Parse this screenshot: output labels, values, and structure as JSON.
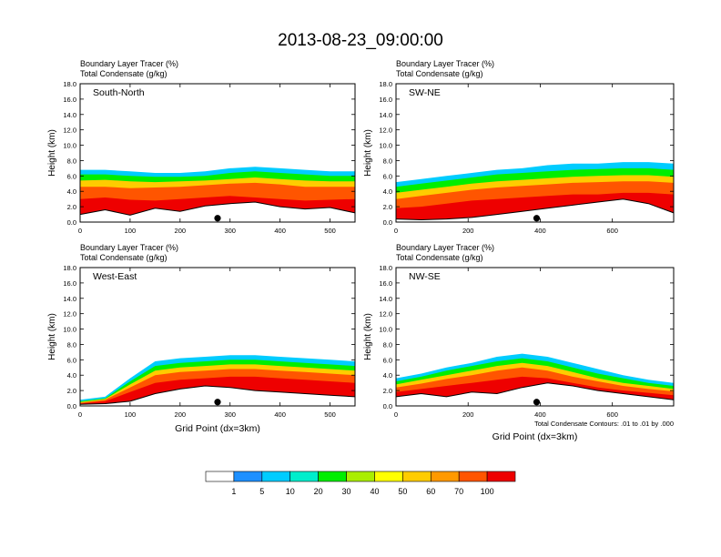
{
  "title": "2013-08-23_09:00:00",
  "chart_data": [
    {
      "type": "heatmap",
      "label": "South-North",
      "title_lines": [
        "Boundary Layer Tracer   (%)",
        "Total Condensate   (g/kg)"
      ],
      "xlabel": "",
      "ylabel": "Height (km)",
      "xlim": [
        0,
        550
      ],
      "ylim": [
        0,
        18
      ],
      "x_ticks": [
        0,
        100,
        200,
        300,
        400,
        500
      ],
      "y_ticks": [
        "0.0",
        "2.0",
        "4.0",
        "6.0",
        "8.0",
        "10.0",
        "12.0",
        "14.0",
        "16.0",
        "18.0"
      ],
      "marker_x": 275,
      "bands": [
        {
          "level": 1,
          "top": [
            6.8,
            6.8,
            6.6,
            6.4,
            6.4,
            6.6,
            7.0,
            7.2,
            7.0,
            6.8,
            6.6,
            6.6
          ]
        },
        {
          "level": 20,
          "top": [
            6.2,
            6.2,
            6.0,
            5.9,
            5.9,
            6.0,
            6.4,
            6.6,
            6.4,
            6.2,
            6.0,
            6.0
          ]
        },
        {
          "level": 50,
          "top": [
            5.4,
            5.5,
            5.3,
            5.2,
            5.3,
            5.4,
            5.6,
            5.8,
            5.6,
            5.4,
            5.3,
            5.3
          ]
        },
        {
          "level": 70,
          "top": [
            4.6,
            4.6,
            4.4,
            4.5,
            4.6,
            4.8,
            5.0,
            5.1,
            4.9,
            4.6,
            4.6,
            4.6
          ]
        },
        {
          "level": 100,
          "top": [
            3.0,
            3.2,
            2.9,
            2.8,
            3.0,
            3.2,
            3.4,
            3.2,
            3.0,
            2.8,
            2.9,
            3.0
          ]
        }
      ],
      "terrain": [
        1.0,
        1.6,
        0.9,
        1.8,
        1.4,
        2.1,
        2.4,
        2.6,
        2.0,
        1.7,
        1.9,
        1.2
      ]
    },
    {
      "type": "heatmap",
      "label": "SW-NE",
      "title_lines": [
        "Boundary Layer Tracer   (%)",
        "Total Condensate   (g/kg)"
      ],
      "xlabel": "",
      "ylabel": "Height (km)",
      "xlim": [
        0,
        770
      ],
      "ylim": [
        0,
        18
      ],
      "x_ticks": [
        0,
        200,
        400,
        600
      ],
      "y_ticks": [
        "0.0",
        "2.0",
        "4.0",
        "6.0",
        "8.0",
        "10.0",
        "12.0",
        "14.0",
        "16.0",
        "18.0"
      ],
      "marker_x": 390,
      "bands": [
        {
          "level": 1,
          "top": [
            5.2,
            5.6,
            6.0,
            6.4,
            6.8,
            7.0,
            7.4,
            7.6,
            7.6,
            7.8,
            7.8,
            7.6
          ]
        },
        {
          "level": 20,
          "top": [
            4.6,
            5.0,
            5.4,
            5.8,
            6.2,
            6.4,
            6.6,
            6.8,
            6.9,
            7.0,
            7.0,
            6.8
          ]
        },
        {
          "level": 50,
          "top": [
            3.8,
            4.2,
            4.6,
            5.0,
            5.3,
            5.5,
            5.7,
            5.9,
            6.0,
            6.1,
            6.1,
            5.9
          ]
        },
        {
          "level": 70,
          "top": [
            3.0,
            3.4,
            3.8,
            4.2,
            4.5,
            4.7,
            4.9,
            5.1,
            5.2,
            5.3,
            5.3,
            5.1
          ]
        },
        {
          "level": 100,
          "top": [
            1.8,
            2.0,
            2.4,
            2.8,
            3.0,
            3.2,
            3.4,
            3.6,
            3.6,
            3.8,
            3.8,
            3.6
          ]
        }
      ],
      "terrain": [
        0.4,
        0.3,
        0.4,
        0.6,
        1.0,
        1.4,
        1.8,
        2.2,
        2.6,
        3.0,
        2.4,
        1.2
      ]
    },
    {
      "type": "heatmap",
      "label": "West-East",
      "title_lines": [
        "Boundary Layer Tracer   (%)",
        "Total Condensate   (g/kg)"
      ],
      "xlabel": "Grid Point (dx=3km)",
      "ylabel": "Height (km)",
      "xlim": [
        0,
        550
      ],
      "ylim": [
        0,
        18
      ],
      "x_ticks": [
        0,
        100,
        200,
        300,
        400,
        500
      ],
      "y_ticks": [
        "0.0",
        "2.0",
        "4.0",
        "6.0",
        "8.0",
        "10.0",
        "12.0",
        "14.0",
        "16.0",
        "18.0"
      ],
      "marker_x": 275,
      "bands": [
        {
          "level": 1,
          "top": [
            0.8,
            1.2,
            3.6,
            5.8,
            6.2,
            6.4,
            6.6,
            6.6,
            6.4,
            6.2,
            6.0,
            5.8
          ]
        },
        {
          "level": 20,
          "top": [
            0.6,
            1.0,
            3.2,
            5.2,
            5.6,
            5.8,
            6.0,
            6.0,
            5.8,
            5.6,
            5.4,
            5.2
          ]
        },
        {
          "level": 50,
          "top": [
            0.5,
            0.9,
            2.8,
            4.6,
            5.0,
            5.2,
            5.4,
            5.4,
            5.2,
            5.0,
            4.8,
            4.6
          ]
        },
        {
          "level": 70,
          "top": [
            0.4,
            0.8,
            2.4,
            4.0,
            4.4,
            4.6,
            4.8,
            4.8,
            4.6,
            4.4,
            4.2,
            4.0
          ]
        },
        {
          "level": 100,
          "top": [
            0.3,
            0.6,
            1.8,
            3.0,
            3.4,
            3.6,
            3.8,
            3.8,
            3.6,
            3.4,
            3.2,
            3.0
          ]
        }
      ],
      "terrain": [
        0.2,
        0.3,
        0.6,
        1.6,
        2.2,
        2.6,
        2.4,
        2.0,
        1.8,
        1.6,
        1.4,
        1.2
      ]
    },
    {
      "type": "heatmap",
      "label": "NW-SE",
      "title_lines": [
        "Boundary Layer Tracer   (%)",
        "Total Condensate   (g/kg)"
      ],
      "xlabel": "Grid Point (dx=3km)",
      "ylabel": "Height (km)",
      "xlim": [
        0,
        770
      ],
      "ylim": [
        0,
        18
      ],
      "x_ticks": [
        0,
        200,
        400,
        600
      ],
      "y_ticks": [
        "0.0",
        "2.0",
        "4.0",
        "6.0",
        "8.0",
        "10.0",
        "12.0",
        "14.0",
        "16.0",
        "18.0"
      ],
      "marker_x": 390,
      "bands": [
        {
          "level": 1,
          "top": [
            3.6,
            4.2,
            5.0,
            5.6,
            6.4,
            6.8,
            6.4,
            5.6,
            4.8,
            4.0,
            3.4,
            3.0
          ]
        },
        {
          "level": 20,
          "top": [
            3.2,
            3.8,
            4.6,
            5.2,
            5.8,
            6.2,
            5.8,
            5.0,
            4.2,
            3.6,
            3.0,
            2.6
          ]
        },
        {
          "level": 50,
          "top": [
            2.8,
            3.4,
            4.0,
            4.6,
            5.2,
            5.6,
            5.2,
            4.4,
            3.6,
            3.0,
            2.6,
            2.2
          ]
        },
        {
          "level": 70,
          "top": [
            2.4,
            2.9,
            3.5,
            4.0,
            4.6,
            5.0,
            4.6,
            3.8,
            3.2,
            2.6,
            2.2,
            1.9
          ]
        },
        {
          "level": 100,
          "top": [
            1.8,
            2.2,
            2.6,
            3.0,
            3.4,
            3.8,
            3.6,
            3.0,
            2.4,
            2.0,
            1.7,
            1.4
          ]
        }
      ],
      "terrain": [
        1.2,
        1.6,
        1.2,
        1.8,
        1.6,
        2.4,
        3.0,
        2.6,
        2.0,
        1.6,
        1.2,
        0.8
      ],
      "note": "Total Condensate Contours: .01 to .01 by .000"
    }
  ],
  "colorbar": {
    "levels": [
      "1",
      "5",
      "10",
      "20",
      "30",
      "40",
      "50",
      "60",
      "70",
      "100"
    ],
    "colors": [
      "#ffffff",
      "#1e90ff",
      "#00ccff",
      "#00eecc",
      "#00ee00",
      "#aaee00",
      "#ffff00",
      "#ffcc00",
      "#ff9900",
      "#ff5500",
      "#ee0000"
    ]
  },
  "level_colors": {
    "1": "#00ccff",
    "20": "#00ee00",
    "50": "#ffcc00",
    "70": "#ff5500",
    "100": "#ee0000"
  }
}
